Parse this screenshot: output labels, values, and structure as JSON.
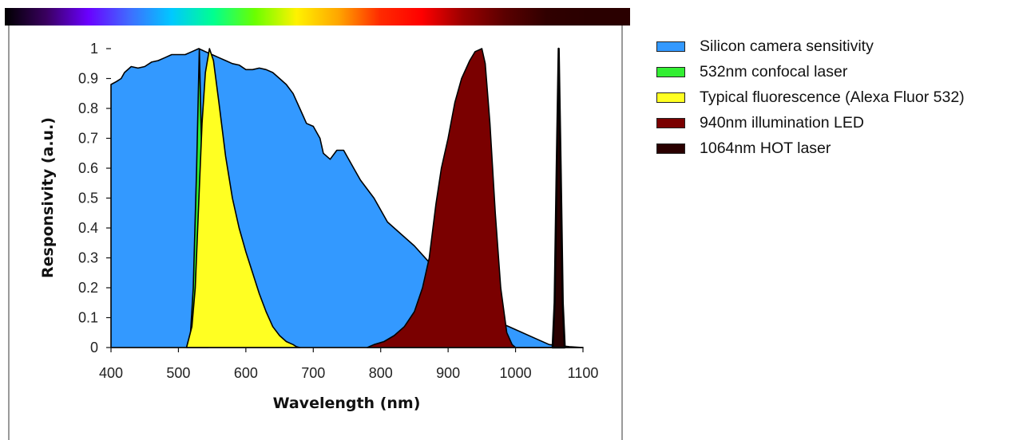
{
  "spectrum_stops": [
    "#000000",
    "#3a0060",
    "#6a00ff",
    "#3f6dff",
    "#00c8ff",
    "#00ff90",
    "#6aff00",
    "#fff200",
    "#ffa600",
    "#ff2a00",
    "#ff0000",
    "#9a0000",
    "#5a0000",
    "#300000",
    "#2a0000",
    "#2a0000"
  ],
  "chart_data": {
    "type": "area",
    "title": "",
    "xlabel": "Wavelength (nm)",
    "ylabel": "Responsivity (a.u.)",
    "xlim": [
      400,
      1100
    ],
    "ylim": [
      0,
      1
    ],
    "x_ticks": [
      400,
      500,
      600,
      700,
      800,
      900,
      1000,
      1100
    ],
    "y_ticks": [
      0,
      0.1,
      0.2,
      0.3,
      0.4,
      0.5,
      0.6,
      0.7,
      0.8,
      0.9,
      1
    ],
    "x_tick_labels": [
      "400",
      "500",
      "600",
      "700",
      "800",
      "900",
      "1000",
      "1100"
    ],
    "y_tick_labels": [
      "0",
      "0.1",
      "0.2",
      "0.3",
      "0.4",
      "0.5",
      "0.6",
      "0.7",
      "0.8",
      "0.9",
      "1"
    ],
    "legend_position": "right",
    "grid": false,
    "series": [
      {
        "name": "Silicon camera sensitivity",
        "color": "#3399ff",
        "points": [
          [
            400,
            0
          ],
          [
            400,
            0.88
          ],
          [
            408,
            0.89
          ],
          [
            415,
            0.9
          ],
          [
            420,
            0.92
          ],
          [
            430,
            0.94
          ],
          [
            440,
            0.935
          ],
          [
            450,
            0.94
          ],
          [
            460,
            0.955
          ],
          [
            470,
            0.96
          ],
          [
            480,
            0.97
          ],
          [
            490,
            0.98
          ],
          [
            500,
            0.98
          ],
          [
            510,
            0.98
          ],
          [
            520,
            0.99
          ],
          [
            530,
            1.0
          ],
          [
            540,
            0.99
          ],
          [
            550,
            0.98
          ],
          [
            560,
            0.97
          ],
          [
            570,
            0.96
          ],
          [
            580,
            0.95
          ],
          [
            590,
            0.945
          ],
          [
            600,
            0.93
          ],
          [
            610,
            0.93
          ],
          [
            620,
            0.935
          ],
          [
            630,
            0.93
          ],
          [
            640,
            0.92
          ],
          [
            650,
            0.9
          ],
          [
            660,
            0.88
          ],
          [
            670,
            0.85
          ],
          [
            680,
            0.8
          ],
          [
            690,
            0.75
          ],
          [
            700,
            0.74
          ],
          [
            710,
            0.7
          ],
          [
            715,
            0.65
          ],
          [
            725,
            0.63
          ],
          [
            735,
            0.66
          ],
          [
            745,
            0.66
          ],
          [
            760,
            0.6
          ],
          [
            770,
            0.56
          ],
          [
            790,
            0.5
          ],
          [
            810,
            0.42
          ],
          [
            830,
            0.38
          ],
          [
            850,
            0.34
          ],
          [
            870,
            0.29
          ],
          [
            880,
            0.26
          ],
          [
            900,
            0.21
          ],
          [
            920,
            0.17
          ],
          [
            950,
            0.12
          ],
          [
            980,
            0.08
          ],
          [
            1000,
            0.06
          ],
          [
            1030,
            0.03
          ],
          [
            1050,
            0.01
          ],
          [
            1080,
            0.003
          ],
          [
            1100,
            0
          ]
        ]
      },
      {
        "name": "532nm confocal laser",
        "color": "#33ee33",
        "points": [
          [
            512,
            0
          ],
          [
            518,
            0.05
          ],
          [
            522,
            0.2
          ],
          [
            527,
            0.6
          ],
          [
            531,
            1.0
          ],
          [
            535,
            0.6
          ],
          [
            538,
            0.2
          ],
          [
            541,
            0.03
          ],
          [
            544,
            0
          ]
        ]
      },
      {
        "name": "Typical fluorescence (Alexa Fluor 532)",
        "color": "#ffff22",
        "points": [
          [
            512,
            0
          ],
          [
            520,
            0.07
          ],
          [
            525,
            0.2
          ],
          [
            530,
            0.48
          ],
          [
            535,
            0.75
          ],
          [
            540,
            0.92
          ],
          [
            546,
            1.0
          ],
          [
            552,
            0.96
          ],
          [
            560,
            0.82
          ],
          [
            570,
            0.64
          ],
          [
            580,
            0.5
          ],
          [
            590,
            0.4
          ],
          [
            600,
            0.32
          ],
          [
            610,
            0.25
          ],
          [
            620,
            0.18
          ],
          [
            630,
            0.12
          ],
          [
            640,
            0.07
          ],
          [
            650,
            0.04
          ],
          [
            660,
            0.02
          ],
          [
            670,
            0.01
          ],
          [
            675,
            0.003
          ],
          [
            680,
            0
          ]
        ]
      },
      {
        "name": "940nm illumination LED",
        "color": "#7a0000",
        "points": [
          [
            780,
            0
          ],
          [
            790,
            0.01
          ],
          [
            805,
            0.02
          ],
          [
            820,
            0.04
          ],
          [
            835,
            0.07
          ],
          [
            850,
            0.12
          ],
          [
            862,
            0.2
          ],
          [
            872,
            0.3
          ],
          [
            882,
            0.48
          ],
          [
            890,
            0.6
          ],
          [
            900,
            0.7
          ],
          [
            910,
            0.82
          ],
          [
            920,
            0.9
          ],
          [
            932,
            0.96
          ],
          [
            940,
            0.99
          ],
          [
            950,
            1.0
          ],
          [
            955,
            0.95
          ],
          [
            962,
            0.75
          ],
          [
            970,
            0.45
          ],
          [
            978,
            0.2
          ],
          [
            987,
            0.05
          ],
          [
            995,
            0.01
          ],
          [
            1000,
            0
          ],
          [
            1060,
            0
          ],
          [
            1100,
            0
          ]
        ]
      },
      {
        "name": "1064nm HOT laser",
        "color": "#2a0000",
        "points": [
          [
            1055,
            0
          ],
          [
            1058,
            0.15
          ],
          [
            1061,
            0.6
          ],
          [
            1064,
            1.0
          ],
          [
            1067,
            0.6
          ],
          [
            1070,
            0.15
          ],
          [
            1073,
            0
          ]
        ]
      }
    ]
  }
}
